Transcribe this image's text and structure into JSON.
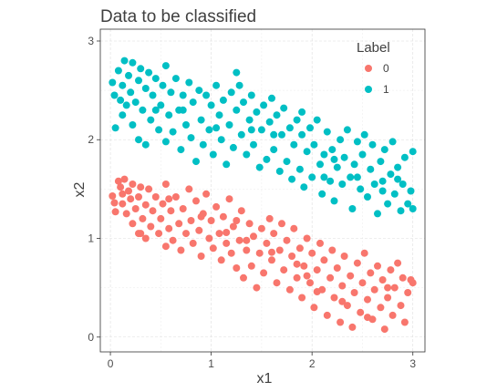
{
  "chart_data": {
    "type": "scatter",
    "title": "Data to be classified",
    "xlabel": "x1",
    "ylabel": "x2",
    "xlim": [
      -0.1,
      3.12
    ],
    "ylim": [
      -0.15,
      3.12
    ],
    "x_ticks": [
      0,
      1,
      2,
      3
    ],
    "y_ticks": [
      0,
      1,
      2,
      3
    ],
    "grid": true,
    "legend": {
      "title": "Label",
      "position": "top-right"
    },
    "series": [
      {
        "name": "0",
        "color": "#F8766D",
        "points": [
          [
            0.02,
            1.43
          ],
          [
            0.04,
            1.36
          ],
          [
            0.05,
            1.27
          ],
          [
            0.08,
            1.58
          ],
          [
            0.1,
            1.52
          ],
          [
            0.12,
            1.45
          ],
          [
            0.12,
            1.35
          ],
          [
            0.14,
            1.6
          ],
          [
            0.16,
            1.25
          ],
          [
            0.18,
            1.48
          ],
          [
            0.2,
            1.4
          ],
          [
            0.22,
            1.55
          ],
          [
            0.22,
            1.15
          ],
          [
            0.25,
            1.3
          ],
          [
            0.28,
            1.42
          ],
          [
            0.28,
            1.05
          ],
          [
            0.3,
            1.52
          ],
          [
            0.32,
            1.2
          ],
          [
            0.35,
            1.34
          ],
          [
            0.35,
            1.0
          ],
          [
            0.38,
            1.5
          ],
          [
            0.4,
            1.12
          ],
          [
            0.42,
            1.28
          ],
          [
            0.45,
            1.42
          ],
          [
            0.48,
            1.05
          ],
          [
            0.5,
            1.2
          ],
          [
            0.52,
            1.35
          ],
          [
            0.55,
            0.92
          ],
          [
            0.55,
            1.55
          ],
          [
            0.58,
            1.1
          ],
          [
            0.6,
            1.28
          ],
          [
            0.62,
            0.98
          ],
          [
            0.65,
            1.42
          ],
          [
            0.68,
            1.15
          ],
          [
            0.7,
            0.88
          ],
          [
            0.72,
            1.3
          ],
          [
            0.75,
            1.05
          ],
          [
            0.78,
            1.5
          ],
          [
            0.8,
            1.18
          ],
          [
            0.82,
            0.95
          ],
          [
            0.85,
            1.38
          ],
          [
            0.88,
            1.08
          ],
          [
            0.9,
            0.82
          ],
          [
            0.92,
            1.25
          ],
          [
            0.95,
            1.45
          ],
          [
            0.98,
            1.0
          ],
          [
            1.0,
            1.18
          ],
          [
            1.02,
            0.9
          ],
          [
            1.05,
            1.32
          ],
          [
            1.08,
            1.05
          ],
          [
            1.1,
            0.78
          ],
          [
            1.12,
            1.22
          ],
          [
            1.15,
            0.95
          ],
          [
            1.18,
            1.4
          ],
          [
            1.2,
            0.85
          ],
          [
            1.22,
            1.12
          ],
          [
            1.25,
            0.7
          ],
          [
            1.28,
            0.98
          ],
          [
            1.3,
            1.28
          ],
          [
            1.32,
            0.6
          ],
          [
            1.35,
            0.88
          ],
          [
            1.38,
            1.15
          ],
          [
            1.4,
            0.72
          ],
          [
            1.42,
            1.02
          ],
          [
            1.45,
            0.5
          ],
          [
            1.48,
            0.85
          ],
          [
            1.5,
            1.1
          ],
          [
            1.52,
            0.65
          ],
          [
            1.55,
            0.95
          ],
          [
            1.58,
            1.2
          ],
          [
            1.6,
            0.78
          ],
          [
            1.62,
            1.05
          ],
          [
            1.65,
            0.55
          ],
          [
            1.68,
            0.88
          ],
          [
            1.7,
            1.15
          ],
          [
            1.72,
            0.68
          ],
          [
            1.75,
            0.98
          ],
          [
            1.78,
            0.48
          ],
          [
            1.8,
            0.82
          ],
          [
            1.82,
            1.1
          ],
          [
            1.85,
            0.6
          ],
          [
            1.88,
            0.9
          ],
          [
            1.9,
            0.4
          ],
          [
            1.92,
            0.72
          ],
          [
            1.95,
            1.0
          ],
          [
            1.98,
            0.55
          ],
          [
            2.0,
            0.85
          ],
          [
            2.02,
            0.3
          ],
          [
            2.05,
            0.68
          ],
          [
            2.08,
            0.95
          ],
          [
            2.1,
            0.48
          ],
          [
            2.12,
            0.78
          ],
          [
            2.15,
            0.22
          ],
          [
            2.18,
            0.6
          ],
          [
            2.2,
            0.88
          ],
          [
            2.22,
            0.4
          ],
          [
            2.25,
            0.7
          ],
          [
            2.28,
            0.15
          ],
          [
            2.3,
            0.52
          ],
          [
            2.32,
            0.82
          ],
          [
            2.35,
            0.32
          ],
          [
            2.38,
            0.62
          ],
          [
            2.4,
            0.1
          ],
          [
            2.42,
            0.45
          ],
          [
            2.45,
            0.75
          ],
          [
            2.48,
            0.25
          ],
          [
            2.5,
            0.55
          ],
          [
            2.52,
            0.85
          ],
          [
            2.55,
            0.38
          ],
          [
            2.58,
            0.65
          ],
          [
            2.6,
            0.18
          ],
          [
            2.62,
            0.48
          ],
          [
            2.65,
            0.72
          ],
          [
            2.68,
            0.3
          ],
          [
            2.7,
            0.58
          ],
          [
            2.72,
            0.08
          ],
          [
            2.75,
            0.4
          ],
          [
            2.78,
            0.68
          ],
          [
            2.8,
            0.22
          ],
          [
            2.82,
            0.5
          ],
          [
            2.85,
            0.75
          ],
          [
            2.88,
            0.32
          ],
          [
            2.9,
            0.6
          ],
          [
            2.92,
            0.15
          ],
          [
            2.95,
            0.45
          ],
          [
            2.98,
            0.58
          ],
          [
            3.0,
            0.55
          ],
          [
            0.9,
            1.22
          ],
          [
            1.15,
            1.06
          ],
          [
            1.35,
            0.98
          ],
          [
            1.6,
            0.86
          ],
          [
            1.85,
            0.74
          ],
          [
            2.05,
            0.46
          ],
          [
            2.3,
            0.36
          ],
          [
            2.55,
            0.2
          ],
          [
            2.75,
            0.5
          ],
          [
            0.58,
            1.4
          ],
          [
            0.3,
            1.05
          ],
          [
            1.25,
            1.18
          ],
          [
            1.95,
            0.62
          ]
        ]
      },
      {
        "name": "1",
        "color": "#00BFC4",
        "points": [
          [
            0.02,
            2.58
          ],
          [
            0.04,
            2.45
          ],
          [
            0.05,
            2.12
          ],
          [
            0.08,
            2.7
          ],
          [
            0.1,
            2.4
          ],
          [
            0.12,
            2.25
          ],
          [
            0.12,
            2.55
          ],
          [
            0.14,
            2.8
          ],
          [
            0.16,
            2.35
          ],
          [
            0.18,
            2.65
          ],
          [
            0.2,
            2.48
          ],
          [
            0.22,
            2.15
          ],
          [
            0.22,
            2.78
          ],
          [
            0.25,
            2.38
          ],
          [
            0.28,
            2.6
          ],
          [
            0.28,
            2.0
          ],
          [
            0.3,
            2.72
          ],
          [
            0.32,
            2.3
          ],
          [
            0.35,
            2.52
          ],
          [
            0.35,
            1.95
          ],
          [
            0.38,
            2.68
          ],
          [
            0.4,
            2.2
          ],
          [
            0.42,
            2.45
          ],
          [
            0.45,
            2.62
          ],
          [
            0.48,
            2.1
          ],
          [
            0.5,
            2.35
          ],
          [
            0.52,
            2.55
          ],
          [
            0.55,
            1.98
          ],
          [
            0.55,
            2.75
          ],
          [
            0.58,
            2.25
          ],
          [
            0.6,
            2.48
          ],
          [
            0.62,
            2.08
          ],
          [
            0.65,
            2.62
          ],
          [
            0.68,
            2.3
          ],
          [
            0.7,
            1.9
          ],
          [
            0.72,
            2.45
          ],
          [
            0.75,
            2.15
          ],
          [
            0.78,
            2.58
          ],
          [
            0.8,
            2.02
          ],
          [
            0.82,
            2.38
          ],
          [
            0.85,
            1.78
          ],
          [
            0.88,
            2.5
          ],
          [
            0.9,
            2.2
          ],
          [
            0.92,
            1.95
          ],
          [
            0.95,
            2.45
          ],
          [
            0.98,
            2.1
          ],
          [
            1.0,
            2.35
          ],
          [
            1.02,
            1.85
          ],
          [
            1.05,
            2.55
          ],
          [
            1.08,
            2.25
          ],
          [
            1.1,
            2.0
          ],
          [
            1.12,
            2.4
          ],
          [
            1.15,
            1.75
          ],
          [
            1.18,
            2.15
          ],
          [
            1.2,
            2.48
          ],
          [
            1.22,
            1.92
          ],
          [
            1.25,
            2.3
          ],
          [
            1.28,
            2.55
          ],
          [
            1.3,
            2.05
          ],
          [
            1.32,
            2.38
          ],
          [
            1.35,
            1.85
          ],
          [
            1.38,
            2.2
          ],
          [
            1.4,
            2.45
          ],
          [
            1.42,
            1.95
          ],
          [
            1.45,
            2.28
          ],
          [
            1.48,
            1.72
          ],
          [
            1.5,
            2.1
          ],
          [
            1.52,
            2.35
          ],
          [
            1.55,
            1.8
          ],
          [
            1.58,
            2.18
          ],
          [
            1.6,
            2.42
          ],
          [
            1.62,
            1.9
          ],
          [
            1.65,
            2.25
          ],
          [
            1.68,
            1.68
          ],
          [
            1.7,
            2.05
          ],
          [
            1.72,
            2.32
          ],
          [
            1.75,
            1.78
          ],
          [
            1.78,
            2.12
          ],
          [
            1.8,
            1.6
          ],
          [
            1.82,
            1.95
          ],
          [
            1.85,
            2.2
          ],
          [
            1.88,
            1.7
          ],
          [
            1.9,
            2.05
          ],
          [
            1.92,
            1.52
          ],
          [
            1.95,
            1.88
          ],
          [
            1.98,
            2.12
          ],
          [
            2.0,
            1.62
          ],
          [
            2.02,
            1.95
          ],
          [
            2.05,
            2.2
          ],
          [
            2.08,
            1.75
          ],
          [
            2.1,
            1.45
          ],
          [
            2.12,
            1.85
          ],
          [
            2.15,
            2.08
          ],
          [
            2.18,
            1.58
          ],
          [
            2.2,
            1.9
          ],
          [
            2.22,
            1.38
          ],
          [
            2.25,
            1.72
          ],
          [
            2.28,
            2.0
          ],
          [
            2.3,
            1.55
          ],
          [
            2.32,
            1.82
          ],
          [
            2.35,
            2.1
          ],
          [
            2.38,
            1.62
          ],
          [
            2.4,
            1.3
          ],
          [
            2.42,
            1.75
          ],
          [
            2.45,
            1.98
          ],
          [
            2.48,
            1.5
          ],
          [
            2.5,
            1.85
          ],
          [
            2.52,
            2.05
          ],
          [
            2.55,
            1.42
          ],
          [
            2.58,
            1.7
          ],
          [
            2.6,
            1.95
          ],
          [
            2.62,
            1.55
          ],
          [
            2.65,
            1.25
          ],
          [
            2.68,
            1.78
          ],
          [
            2.7,
            1.48
          ],
          [
            2.72,
            1.9
          ],
          [
            2.75,
            1.35
          ],
          [
            2.78,
            1.65
          ],
          [
            2.8,
            1.98
          ],
          [
            2.82,
            1.45
          ],
          [
            2.85,
            1.72
          ],
          [
            2.88,
            1.28
          ],
          [
            2.9,
            1.55
          ],
          [
            2.92,
            1.82
          ],
          [
            2.95,
            1.35
          ],
          [
            2.98,
            1.48
          ],
          [
            3.0,
            1.3
          ],
          [
            3.0,
            1.88
          ],
          [
            1.25,
            2.68
          ],
          [
            0.72,
            2.3
          ],
          [
            1.62,
            2.05
          ],
          [
            2.22,
            1.8
          ],
          [
            2.7,
            1.58
          ],
          [
            0.45,
            2.3
          ],
          [
            1.05,
            2.12
          ],
          [
            1.9,
            2.28
          ],
          [
            2.45,
            1.62
          ],
          [
            1.4,
            2.1
          ],
          [
            2.12,
            1.62
          ],
          [
            2.85,
            1.6
          ]
        ]
      }
    ]
  }
}
